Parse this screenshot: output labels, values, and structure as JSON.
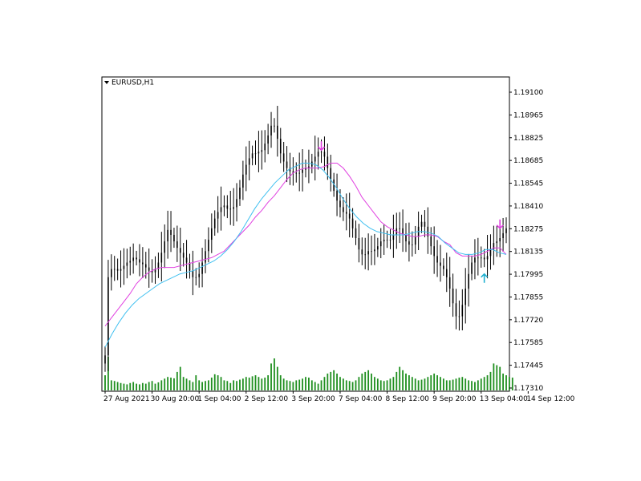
{
  "chart_data": {
    "type": "candlestick",
    "symbol_label": "EURUSD,H1",
    "title": "",
    "xlabel": "",
    "ylabel": "",
    "ylim": [
      1.1731,
      1.1918
    ],
    "grid": false,
    "colors": {
      "background": "#ffffff",
      "axis": "#000000",
      "candle": "#000000",
      "volume": "#1f8f1f",
      "ma_fast": "#e040e0",
      "ma_slow": "#40c0f0",
      "signal_down": "#e040e0",
      "signal_up": "#20b0d0"
    },
    "icons": {
      "symbol_dropdown": "triangle-down-icon",
      "signal_down": "arrow-down-icon",
      "signal_up": "arrow-up-icon"
    },
    "y_ticks": [
      "1.19100",
      "1.18965",
      "1.18825",
      "1.18685",
      "1.18545",
      "1.18410",
      "1.18275",
      "1.18135",
      "1.17995",
      "1.17855",
      "1.17720",
      "1.17585",
      "1.17445",
      "1.17310"
    ],
    "x_ticks": [
      {
        "label": "27 Aug 2021",
        "bar": 0
      },
      {
        "label": "30 Aug 20:00",
        "bar": 15
      },
      {
        "label": "1 Sep 04:00",
        "bar": 30
      },
      {
        "label": "2 Sep 12:00",
        "bar": 45
      },
      {
        "label": "3 Sep 20:00",
        "bar": 60
      },
      {
        "label": "7 Sep 04:00",
        "bar": 75
      },
      {
        "label": "8 Sep 12:00",
        "bar": 90
      },
      {
        "label": "9 Sep 20:00",
        "bar": 105
      },
      {
        "label": "13 Sep 04:00",
        "bar": 120
      },
      {
        "label": "14 Sep 12:00",
        "bar": 135
      }
    ],
    "series": [
      {
        "key": "close",
        "values": [
          1.1752,
          1.18,
          1.1805,
          1.1805,
          1.1804,
          1.1805,
          1.1807,
          1.1809,
          1.181,
          1.1812,
          1.1811,
          1.1809,
          1.1808,
          1.1806,
          1.1804,
          1.1803,
          1.1805,
          1.1809,
          1.1815,
          1.1822,
          1.1829,
          1.1826,
          1.1822,
          1.1818,
          1.1815,
          1.1812,
          1.1809,
          1.1804,
          1.18,
          1.18,
          1.1802,
          1.1809,
          1.1816,
          1.1823,
          1.183,
          1.1836,
          1.184,
          1.1843,
          1.1844,
          1.1842,
          1.1842,
          1.1843,
          1.1848,
          1.1855,
          1.1863,
          1.1869,
          1.1873,
          1.1876,
          1.1876,
          1.1877,
          1.1878,
          1.1882,
          1.1887,
          1.1893,
          1.1893,
          1.1885,
          1.1876,
          1.1871,
          1.1867,
          1.1865,
          1.1864,
          1.1864,
          1.1864,
          1.1866,
          1.1867,
          1.1868,
          1.1871,
          1.1874,
          1.1877,
          1.1877,
          1.1874,
          1.1867,
          1.186,
          1.1853,
          1.1847,
          1.1843,
          1.184,
          1.1839,
          1.1836,
          1.183,
          1.1824,
          1.1817,
          1.1814,
          1.1814,
          1.1816,
          1.1816,
          1.1817,
          1.1819,
          1.1822,
          1.1823,
          1.1823,
          1.1823,
          1.1826,
          1.183,
          1.183,
          1.1826,
          1.1822,
          1.182,
          1.182,
          1.1825,
          1.1831,
          1.1834,
          1.1831,
          1.1825,
          1.1819,
          1.1813,
          1.1809,
          1.1807,
          1.1805,
          1.18,
          1.1793,
          1.1784,
          1.1776,
          1.1776,
          1.1783,
          1.1793,
          1.1802,
          1.1809,
          1.1812,
          1.1812,
          1.1812,
          1.1811,
          1.1813,
          1.1817,
          1.1821,
          1.1822,
          1.1824,
          1.1827,
          1.183
        ]
      },
      {
        "key": "volume",
        "values": [
          45,
          100,
          30,
          28,
          25,
          22,
          20,
          18,
          22,
          25,
          20,
          18,
          22,
          20,
          25,
          28,
          20,
          24,
          30,
          35,
          40,
          38,
          36,
          55,
          70,
          40,
          35,
          30,
          25,
          45,
          30,
          25,
          28,
          30,
          38,
          48,
          45,
          40,
          30,
          28,
          22,
          30,
          28,
          32,
          35,
          40,
          38,
          42,
          45,
          40,
          35,
          38,
          45,
          80,
          95,
          70,
          45,
          35,
          30,
          28,
          25,
          30,
          32,
          35,
          40,
          38,
          30,
          25,
          20,
          30,
          40,
          50,
          55,
          60,
          50,
          40,
          35,
          30,
          28,
          25,
          30,
          40,
          50,
          55,
          60,
          50,
          40,
          35,
          30,
          28,
          30,
          35,
          40,
          55,
          70,
          60,
          50,
          45,
          40,
          35,
          30,
          32,
          35,
          40,
          45,
          50,
          45,
          40,
          35,
          30,
          30,
          32,
          35,
          38,
          40,
          35,
          30,
          28,
          25,
          30,
          35,
          40,
          45,
          55,
          80,
          75,
          70,
          50,
          45,
          40,
          38
        ]
      },
      {
        "key": "ma_fast",
        "values": [
          1.177,
          1.1775,
          1.178,
          1.1785,
          1.179,
          1.1796,
          1.18,
          1.1803,
          1.1805,
          1.1806,
          1.1806,
          1.1806,
          1.1807,
          1.1808,
          1.1809,
          1.181,
          1.1811,
          1.1812,
          1.1814,
          1.1816,
          1.182,
          1.1824,
          1.1828,
          1.1832,
          1.1837,
          1.1841,
          1.1846,
          1.185,
          1.1855,
          1.186,
          1.1864,
          1.1866,
          1.1867,
          1.1867,
          1.1867,
          1.1868,
          1.187,
          1.187,
          1.1867,
          1.1862,
          1.1856,
          1.1849,
          1.1844,
          1.1839,
          1.1834,
          1.1831,
          1.1829,
          1.1827,
          1.1826,
          1.1825,
          1.1825,
          1.1826,
          1.1826,
          1.1825,
          1.1822,
          1.182,
          1.1815,
          1.1813,
          1.1813,
          1.1813,
          1.1814,
          1.1816,
          1.1818,
          1.1818,
          1.1814
        ]
      },
      {
        "key": "ma_slow",
        "values": [
          1.1757,
          1.1765,
          1.1772,
          1.1778,
          1.1783,
          1.1787,
          1.179,
          1.1793,
          1.1796,
          1.1798,
          1.18,
          1.1802,
          1.1803,
          1.1804,
          1.1806,
          1.1808,
          1.181,
          1.1813,
          1.1817,
          1.1822,
          1.1828,
          1.1835,
          1.1842,
          1.1848,
          1.1853,
          1.1858,
          1.1862,
          1.1866,
          1.1868,
          1.187,
          1.187,
          1.1869,
          1.1866,
          1.1861,
          1.1855,
          1.1848,
          1.1842,
          1.1837,
          1.1833,
          1.183,
          1.1828,
          1.1827,
          1.1826,
          1.1826,
          1.1826,
          1.1827,
          1.1828,
          1.1828,
          1.1827,
          1.1825,
          1.1821,
          1.1818,
          1.1815,
          1.1814,
          1.1814,
          1.1815,
          1.1817,
          1.1817,
          1.1815,
          1.1814
        ]
      }
    ],
    "signals": [
      {
        "type": "down",
        "bar": 69,
        "price": 1.188
      },
      {
        "type": "up",
        "bar": 121,
        "price": 1.18
      },
      {
        "type": "down",
        "bar": 126,
        "price": 1.1832
      }
    ]
  }
}
